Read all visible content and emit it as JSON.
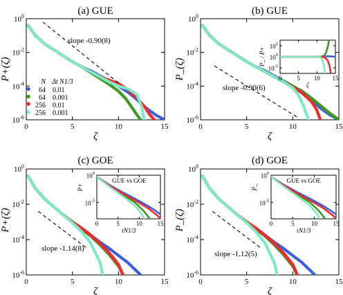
{
  "chart_data": [
    {
      "panel": "a",
      "type": "line",
      "title": "(a) GUE",
      "xlabel": "ζ",
      "ylabel": "P+(ζ)",
      "xlim": [
        0,
        15
      ],
      "ylim_log10": [
        -6,
        0
      ],
      "x_ticks": [
        "0",
        "5",
        "10",
        "15"
      ],
      "y_ticks": [
        {
          "b": "10",
          "e": "0"
        },
        {
          "b": "10",
          "e": "-2"
        },
        {
          "b": "10",
          "e": "-4"
        },
        {
          "b": "10",
          "e": "-6"
        }
      ],
      "annotation": "slope -0.90(8)",
      "reference_line": {
        "x": [
          1.8,
          10.2
        ],
        "log10y": [
          -0.2,
          -3.9
        ]
      },
      "legend": {
        "position": "left-middle",
        "header": [
          "N",
          "Δt N1/3"
        ],
        "entries": [
          {
            "N": "64",
            "dt": "0.01"
          },
          {
            "N": "64",
            "dt": "0.001"
          },
          {
            "N": "256",
            "dt": "0.01"
          },
          {
            "N": "256",
            "dt": "0.001"
          }
        ]
      },
      "series": [
        {
          "color": "#3a5fe0",
          "x": [
            0.2,
            1,
            2,
            3,
            4,
            5,
            6,
            7,
            8,
            9,
            10,
            11,
            12,
            13,
            14,
            15
          ],
          "log10y": [
            -0.4,
            -1.0,
            -1.5,
            -1.85,
            -2.2,
            -2.55,
            -2.85,
            -3.1,
            -3.4,
            -3.7,
            -4.0,
            -4.35,
            -4.8,
            -5.3,
            -5.7,
            -6.0
          ]
        },
        {
          "color": "#3c9a24",
          "x": [
            0.2,
            1,
            2,
            3,
            4,
            5,
            6,
            7,
            8,
            9,
            10,
            10.8,
            11.5,
            12.0,
            12.4
          ],
          "log10y": [
            -0.4,
            -1.0,
            -1.5,
            -1.85,
            -2.2,
            -2.55,
            -2.85,
            -3.2,
            -3.55,
            -3.9,
            -4.3,
            -4.75,
            -5.3,
            -5.7,
            -6.0
          ]
        },
        {
          "color": "#ee2b2b",
          "x": [
            0.2,
            1,
            2,
            3,
            4,
            5,
            6,
            7,
            8,
            9,
            10,
            11,
            12,
            12.8,
            13.4,
            13.9
          ],
          "log10y": [
            -0.4,
            -1.0,
            -1.5,
            -1.85,
            -2.2,
            -2.55,
            -2.85,
            -3.15,
            -3.45,
            -3.65,
            -3.85,
            -4.2,
            -4.7,
            -5.2,
            -5.7,
            -6.0
          ]
        },
        {
          "color": "#7fe8c4",
          "x": [
            0.2,
            1,
            2,
            3,
            4,
            5,
            6,
            7,
            8,
            9,
            10,
            11,
            12,
            12.5,
            12.8
          ],
          "log10y": [
            -0.4,
            -1.0,
            -1.5,
            -1.85,
            -2.2,
            -2.55,
            -2.85,
            -3.15,
            -3.45,
            -3.75,
            -4.0,
            -4.15,
            -4.5,
            -5.2,
            -6.0
          ]
        }
      ]
    },
    {
      "panel": "b",
      "type": "line",
      "title": "(b) GUE",
      "xlabel": "ζ",
      "ylabel": "P_(ζ)",
      "xlim": [
        0,
        15
      ],
      "ylim_log10": [
        -6,
        0
      ],
      "x_ticks": [
        "0",
        "5",
        "10",
        "15"
      ],
      "y_ticks": [
        {
          "b": "10",
          "e": "0"
        },
        {
          "b": "10",
          "e": "-2"
        },
        {
          "b": "10",
          "e": "-4"
        },
        {
          "b": "10",
          "e": "-6"
        }
      ],
      "annotation": "slope -0.90(6)",
      "reference_line": {
        "x": [
          1.5,
          10.5
        ],
        "log10y": [
          -2.8,
          -5.85
        ]
      },
      "series": [
        {
          "color": "#3a5fe0",
          "x": [
            0.2,
            1,
            2,
            3,
            4,
            5,
            6,
            7,
            8,
            9,
            10,
            11,
            12,
            13,
            14,
            15
          ],
          "log10y": [
            -0.4,
            -1.0,
            -1.5,
            -1.85,
            -2.2,
            -2.55,
            -2.85,
            -3.1,
            -3.4,
            -3.7,
            -4.0,
            -4.35,
            -4.8,
            -5.3,
            -5.7,
            -6.0
          ]
        },
        {
          "color": "#3c9a24",
          "x": [
            0.2,
            1,
            2,
            3,
            4,
            5,
            6,
            7,
            8,
            9,
            10,
            11,
            12,
            13,
            14,
            15
          ],
          "log10y": [
            -0.4,
            -1.0,
            -1.5,
            -1.85,
            -2.2,
            -2.55,
            -2.85,
            -3.15,
            -3.45,
            -3.7,
            -4.0,
            -4.3,
            -4.7,
            -5.15,
            -5.6,
            -6.0
          ]
        },
        {
          "color": "#ee2b2b",
          "x": [
            0.2,
            1,
            2,
            3,
            4,
            5,
            6,
            7,
            8,
            9,
            10,
            11,
            12,
            12.6,
            13.0
          ],
          "log10y": [
            -0.4,
            -1.0,
            -1.5,
            -1.85,
            -2.2,
            -2.55,
            -2.85,
            -3.15,
            -3.45,
            -3.75,
            -4.05,
            -4.4,
            -4.9,
            -5.4,
            -6.0
          ]
        },
        {
          "color": "#7fe8c4",
          "x": [
            0.2,
            1,
            2,
            3,
            4,
            5,
            6,
            7,
            8,
            9,
            10,
            10.6,
            11.2,
            11.7
          ],
          "log10y": [
            -0.4,
            -1.0,
            -1.5,
            -1.85,
            -2.2,
            -2.55,
            -2.85,
            -3.15,
            -3.45,
            -3.75,
            -4.1,
            -4.5,
            -5.2,
            -6.0
          ]
        }
      ],
      "inset": {
        "xlabel": "ζ",
        "ylabel": "P_ / P+",
        "xlim": [
          0,
          15
        ],
        "ylim_log10": [
          -3,
          3
        ],
        "x_ticks": [
          "0",
          "5",
          "10",
          "15"
        ],
        "y_ticks": [
          {
            "b": "10",
            "e": "2"
          },
          {
            "b": "10",
            "e": "0"
          },
          {
            "b": "10",
            "e": "-2"
          }
        ],
        "series": [
          {
            "color": "#3a5fe0",
            "x": [
              0,
              2,
              4,
              6,
              8,
              10,
              12,
              13,
              14,
              15
            ],
            "log10y": [
              0,
              0,
              0,
              0,
              0,
              0,
              0.05,
              0.1,
              0.05,
              0
            ]
          },
          {
            "color": "#3c9a24",
            "x": [
              0,
              2,
              4,
              6,
              8,
              10,
              11,
              12,
              12.5,
              13,
              13.3
            ],
            "log10y": [
              0,
              0,
              0,
              0,
              0,
              0,
              0,
              0.2,
              0.8,
              2.0,
              3.0
            ]
          },
          {
            "color": "#ee2b2b",
            "x": [
              0,
              2,
              4,
              6,
              8,
              10,
              11.5,
              12.5,
              13,
              13.4,
              13.7
            ],
            "log10y": [
              0,
              0,
              0,
              0,
              0,
              0,
              0,
              -0.3,
              -0.8,
              -1.6,
              -2.8
            ]
          },
          {
            "color": "#7fe8c4",
            "x": [
              0,
              2,
              4,
              6,
              8,
              10,
              11,
              11.5,
              11.9,
              12.2
            ],
            "log10y": [
              0,
              0,
              0,
              0,
              0,
              0,
              -0.1,
              -0.6,
              -1.6,
              -3.0
            ]
          }
        ]
      }
    },
    {
      "panel": "c",
      "type": "line",
      "title": "(c) GOE",
      "xlabel": "ζ",
      "ylabel": "P+(ζ)",
      "xlim": [
        0,
        15
      ],
      "ylim_log10": [
        -6,
        0
      ],
      "x_ticks": [
        "0",
        "5",
        "10",
        "15"
      ],
      "y_ticks": [
        {
          "b": "10",
          "e": "0"
        },
        {
          "b": "10",
          "e": "-2"
        },
        {
          "b": "10",
          "e": "-4"
        },
        {
          "b": "10",
          "e": "-6"
        }
      ],
      "annotation": "slope -1.14(8)",
      "reference_line": {
        "x": [
          1.3,
          6.6
        ],
        "log10y": [
          -2.4,
          -4.5
        ]
      },
      "series": [
        {
          "color": "#3a5fe0",
          "x": [
            0.2,
            1,
            2,
            3,
            4,
            5,
            6,
            7,
            8,
            9,
            10,
            11,
            12,
            12.4
          ],
          "log10y": [
            -0.4,
            -1.1,
            -1.7,
            -2.15,
            -2.6,
            -3.0,
            -3.35,
            -3.75,
            -4.15,
            -4.5,
            -4.9,
            -5.3,
            -5.8,
            -6.0
          ]
        },
        {
          "color": "#3c9a24",
          "x": [
            0.2,
            1,
            2,
            3,
            4,
            5,
            6,
            7,
            8,
            9,
            10,
            10.5
          ],
          "log10y": [
            -0.4,
            -1.1,
            -1.7,
            -2.15,
            -2.6,
            -3.0,
            -3.4,
            -3.8,
            -4.3,
            -4.85,
            -5.5,
            -6.0
          ]
        },
        {
          "color": "#ee2b2b",
          "x": [
            0.2,
            1,
            2,
            3,
            4,
            5,
            6,
            7,
            8,
            9,
            10,
            10.5
          ],
          "log10y": [
            -0.4,
            -1.1,
            -1.7,
            -2.15,
            -2.6,
            -3.0,
            -3.35,
            -3.75,
            -4.2,
            -4.75,
            -5.4,
            -6.0
          ]
        },
        {
          "color": "#7fe8c4",
          "x": [
            0.2,
            1,
            2,
            3,
            4,
            5,
            6,
            7,
            8,
            8.3
          ],
          "log10y": [
            -0.4,
            -1.1,
            -1.7,
            -2.15,
            -2.6,
            -3.05,
            -3.55,
            -4.2,
            -5.3,
            -6.0
          ]
        }
      ],
      "inset": {
        "title": "GUE vs GOE",
        "xlabel": "τN1/3",
        "ylabel": "P+",
        "xlim": [
          0,
          15
        ],
        "ylim_log10": [
          -8,
          0
        ],
        "x_ticks": [
          "0",
          "5",
          "10",
          "15"
        ],
        "y_ticks": [
          {
            "b": "10",
            "e": "0"
          },
          {
            "b": "10",
            "e": "-5"
          }
        ],
        "series": [
          {
            "color": "#3a5fe0",
            "x": [
              0,
              3,
              6,
              9,
              12,
              14,
              15
            ],
            "log10y": [
              -0.3,
              -1.8,
              -3.1,
              -4.3,
              -5.6,
              -6.6,
              -7.2
            ]
          },
          {
            "color": "#3c9a24",
            "x": [
              0,
              3,
              6,
              9,
              11,
              12.5
            ],
            "log10y": [
              -0.3,
              -2.0,
              -3.5,
              -5.0,
              -6.5,
              -8.0
            ]
          },
          {
            "color": "#ee2b2b",
            "x": [
              0,
              3,
              6,
              9,
              12,
              14,
              15
            ],
            "log10y": [
              -0.3,
              -1.9,
              -3.3,
              -4.6,
              -6.0,
              -7.2,
              -7.9
            ]
          },
          {
            "color": "#7fe8c4",
            "x": [
              0,
              3,
              6,
              9,
              10.5,
              11.2
            ],
            "log10y": [
              -0.3,
              -2.1,
              -3.8,
              -5.6,
              -7.0,
              -8.0
            ]
          }
        ]
      }
    },
    {
      "panel": "d",
      "type": "line",
      "title": "(d) GOE",
      "xlabel": "ζ",
      "ylabel": "P_(ζ)",
      "xlim": [
        0,
        15
      ],
      "ylim_log10": [
        -6,
        0
      ],
      "x_ticks": [
        "0",
        "5",
        "10",
        "15"
      ],
      "y_ticks": [
        {
          "b": "10",
          "e": "0"
        },
        {
          "b": "10",
          "e": "-2"
        },
        {
          "b": "10",
          "e": "-4"
        },
        {
          "b": "10",
          "e": "-6"
        }
      ],
      "annotation": "slope -1.12(5)",
      "reference_line": {
        "x": [
          1.3,
          6.6
        ],
        "log10y": [
          -2.4,
          -4.5
        ]
      },
      "series": [
        {
          "color": "#3a5fe0",
          "x": [
            0.2,
            1,
            2,
            3,
            4,
            5,
            6,
            7,
            8,
            9,
            10,
            11,
            12,
            12.4
          ],
          "log10y": [
            -0.4,
            -1.1,
            -1.7,
            -2.15,
            -2.6,
            -3.0,
            -3.35,
            -3.75,
            -4.15,
            -4.5,
            -4.9,
            -5.3,
            -5.8,
            -6.0
          ]
        },
        {
          "color": "#3c9a24",
          "x": [
            0.2,
            1,
            2,
            3,
            4,
            5,
            6,
            7,
            8,
            9,
            10,
            10.5
          ],
          "log10y": [
            -0.4,
            -1.1,
            -1.7,
            -2.15,
            -2.6,
            -3.0,
            -3.4,
            -3.8,
            -4.3,
            -4.85,
            -5.5,
            -6.0
          ]
        },
        {
          "color": "#ee2b2b",
          "x": [
            0.2,
            1,
            2,
            3,
            4,
            5,
            6,
            7,
            8,
            9,
            10,
            10.5
          ],
          "log10y": [
            -0.4,
            -1.1,
            -1.7,
            -2.15,
            -2.6,
            -3.0,
            -3.35,
            -3.75,
            -4.2,
            -4.75,
            -5.4,
            -6.0
          ]
        },
        {
          "color": "#7fe8c4",
          "x": [
            0.2,
            1,
            2,
            3,
            4,
            5,
            6,
            7,
            8,
            8.3
          ],
          "log10y": [
            -0.4,
            -1.1,
            -1.7,
            -2.15,
            -2.6,
            -3.05,
            -3.55,
            -4.2,
            -5.3,
            -6.0
          ]
        }
      ],
      "inset": {
        "title": "GUE vs GOE",
        "xlabel": "τN1/3",
        "ylabel": "P_",
        "xlim": [
          0,
          15
        ],
        "ylim_log10": [
          -8,
          0
        ],
        "x_ticks": [
          "0",
          "5",
          "10",
          "15"
        ],
        "y_ticks": [
          {
            "b": "10",
            "e": "0"
          },
          {
            "b": "10",
            "e": "-5"
          }
        ],
        "series": [
          {
            "color": "#3a5fe0",
            "x": [
              0,
              3,
              6,
              9,
              12,
              14,
              15
            ],
            "log10y": [
              -0.3,
              -1.8,
              -3.1,
              -4.3,
              -5.6,
              -6.6,
              -7.2
            ]
          },
          {
            "color": "#3c9a24",
            "x": [
              0,
              3,
              6,
              9,
              11,
              12.5
            ],
            "log10y": [
              -0.3,
              -2.0,
              -3.5,
              -5.0,
              -6.5,
              -8.0
            ]
          },
          {
            "color": "#ee2b2b",
            "x": [
              0,
              3,
              6,
              9,
              12,
              14,
              15
            ],
            "log10y": [
              -0.3,
              -1.9,
              -3.3,
              -4.6,
              -6.0,
              -7.2,
              -7.9
            ]
          },
          {
            "color": "#7fe8c4",
            "x": [
              0,
              3,
              6,
              9,
              10.5,
              11.2
            ],
            "log10y": [
              -0.3,
              -2.1,
              -3.8,
              -5.6,
              -7.0,
              -8.0
            ]
          }
        ]
      }
    }
  ]
}
